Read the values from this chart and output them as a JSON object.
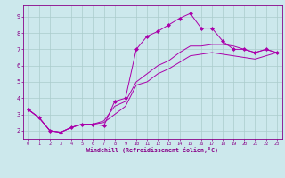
{
  "xlabel": "Windchill (Refroidissement éolien,°C)",
  "bg_color": "#cce8ec",
  "line_color": "#aa00aa",
  "grid_color": "#aacccc",
  "xmin": -0.5,
  "xmax": 23.5,
  "ymin": 1.5,
  "ymax": 9.7,
  "yticks": [
    2,
    3,
    4,
    5,
    6,
    7,
    8,
    9
  ],
  "xticks": [
    0,
    1,
    2,
    3,
    4,
    5,
    6,
    7,
    8,
    9,
    10,
    11,
    12,
    13,
    14,
    15,
    16,
    17,
    18,
    19,
    20,
    21,
    22,
    23
  ],
  "line1_x": [
    0,
    1,
    2,
    3,
    4,
    5,
    6,
    7,
    8,
    9,
    10,
    11,
    12,
    13,
    14,
    15,
    16,
    17,
    18,
    19,
    20,
    21,
    22,
    23
  ],
  "line1_y": [
    3.3,
    2.8,
    2.0,
    1.9,
    2.2,
    2.4,
    2.4,
    2.3,
    3.8,
    4.0,
    7.0,
    7.8,
    8.1,
    8.5,
    8.9,
    9.2,
    8.3,
    8.3,
    7.5,
    7.0,
    7.0,
    6.8,
    7.0,
    6.8
  ],
  "line2_x": [
    0,
    1,
    2,
    3,
    4,
    5,
    6,
    7,
    8,
    9,
    10,
    11,
    12,
    13,
    14,
    15,
    16,
    17,
    18,
    19,
    20,
    21,
    22,
    23
  ],
  "line2_y": [
    3.3,
    2.8,
    2.0,
    1.9,
    2.2,
    2.4,
    2.4,
    2.6,
    3.5,
    3.8,
    5.0,
    5.5,
    6.0,
    6.3,
    6.8,
    7.2,
    7.2,
    7.3,
    7.3,
    7.2,
    7.0,
    6.8,
    7.0,
    6.8
  ],
  "line3_x": [
    0,
    1,
    2,
    3,
    4,
    5,
    6,
    7,
    8,
    9,
    10,
    11,
    12,
    13,
    14,
    15,
    16,
    17,
    18,
    19,
    20,
    21,
    22,
    23
  ],
  "line3_y": [
    3.3,
    2.8,
    2.0,
    1.9,
    2.2,
    2.4,
    2.4,
    2.5,
    3.0,
    3.5,
    4.8,
    5.0,
    5.5,
    5.8,
    6.2,
    6.6,
    6.7,
    6.8,
    6.7,
    6.6,
    6.5,
    6.4,
    6.6,
    6.8
  ],
  "tick_color": "#880088",
  "spine_color": "#880088"
}
